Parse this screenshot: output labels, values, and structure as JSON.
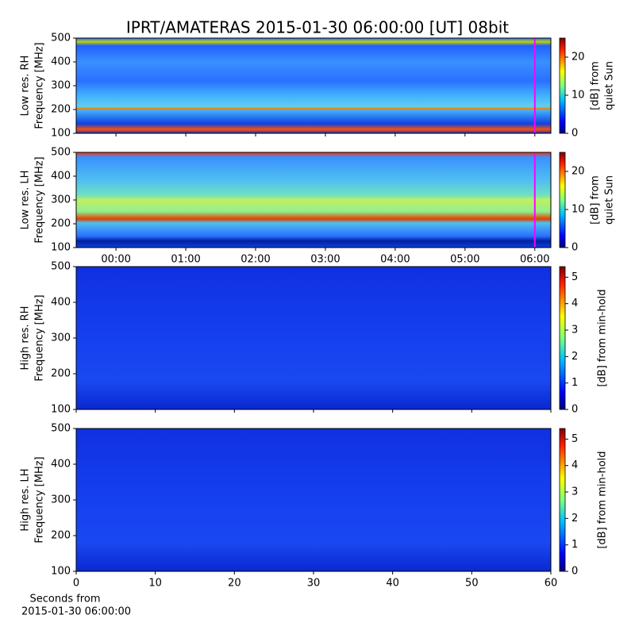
{
  "chart_data": [
    {
      "type": "heatmap",
      "title": "IPRT/AMATERAS 2015-01-30 06:00:00 [UT]   08bit",
      "ylabel": [
        "Low res. RH",
        "Frequency [MHz]"
      ],
      "ylim": [
        100,
        500
      ],
      "yticks": [
        100,
        200,
        300,
        400,
        500
      ],
      "xlim": [
        -0.57,
        6.23
      ],
      "marker": {
        "x": 6.0,
        "color": "#ff00ff"
      },
      "colorbar": {
        "label": [
          "[dB] from",
          "quiet Sun"
        ],
        "lim": [
          0,
          25
        ],
        "ticks": [
          0,
          10,
          20
        ]
      }
    },
    {
      "type": "heatmap",
      "ylabel": [
        "Low res. LH",
        "Frequency [MHz]"
      ],
      "ylim": [
        100,
        500
      ],
      "yticks": [
        100,
        200,
        300,
        400,
        500
      ],
      "xlim": [
        -0.57,
        6.23
      ],
      "xticks": [
        {
          "value": 0,
          "label": "00:00"
        },
        {
          "value": 1,
          "label": "01:00"
        },
        {
          "value": 2,
          "label": "02:00"
        },
        {
          "value": 3,
          "label": "03:00"
        },
        {
          "value": 4,
          "label": "04:00"
        },
        {
          "value": 5,
          "label": "05:00"
        },
        {
          "value": 6,
          "label": "06:00"
        }
      ],
      "marker": {
        "x": 6.0,
        "color": "#ff00ff"
      },
      "colorbar": {
        "label": [
          "[dB] from",
          "quiet Sun"
        ],
        "lim": [
          0,
          25
        ],
        "ticks": [
          0,
          10,
          20
        ]
      }
    },
    {
      "type": "heatmap",
      "ylabel": [
        "High res. RH",
        "Frequency [MHz]"
      ],
      "ylim": [
        100,
        500
      ],
      "yticks": [
        100,
        200,
        300,
        400,
        500
      ],
      "xlim": [
        0,
        60
      ],
      "colorbar": {
        "label": [
          "[dB] from min-hold"
        ],
        "lim": [
          0,
          5.4
        ],
        "ticks": [
          0,
          1,
          2,
          3,
          4,
          5
        ]
      }
    },
    {
      "type": "heatmap",
      "ylabel": [
        "High res. LH",
        "Frequency [MHz]"
      ],
      "ylim": [
        100,
        500
      ],
      "yticks": [
        100,
        200,
        300,
        400,
        500
      ],
      "xlim": [
        0,
        60
      ],
      "xticks": [
        0,
        10,
        20,
        30,
        40,
        50,
        60
      ],
      "xlabel": [
        "Seconds from",
        "2015-01-30 06:00:00"
      ],
      "colorbar": {
        "label": [
          "[dB] from min-hold"
        ],
        "lim": [
          0,
          5.4
        ],
        "ticks": [
          0,
          1,
          2,
          3,
          4,
          5
        ]
      }
    }
  ]
}
